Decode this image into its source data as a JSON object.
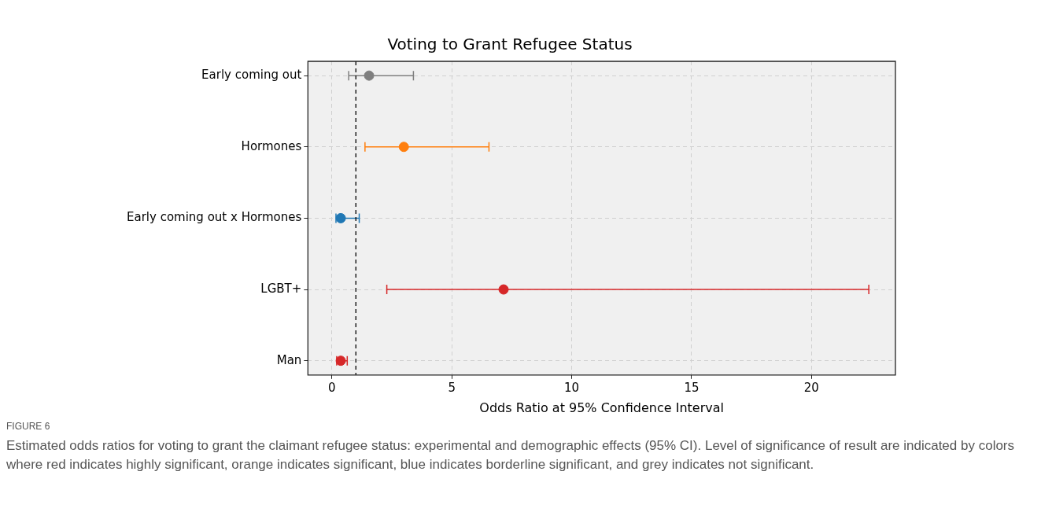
{
  "chart_data": {
    "type": "scatter",
    "orientation": "horizontal",
    "title": "Voting to Grant Refugee Status",
    "xlabel": "Odds Ratio at 95% Confidence Interval",
    "categories": [
      "Early coming out",
      "Hormones",
      "Early coming out x Hormones",
      "LGBT+",
      "Man"
    ],
    "values": [
      1.55,
      3.0,
      0.37,
      7.16,
      0.37
    ],
    "errors": [
      [
        0.7,
        3.4
      ],
      [
        1.38,
        6.55
      ],
      [
        0.17,
        1.14
      ],
      [
        2.29,
        22.39
      ],
      [
        0.2,
        0.64
      ]
    ],
    "colors": [
      "#7f7f7f",
      "#ff7f0e",
      "#1f77b4",
      "#d62728",
      "#d62728"
    ],
    "xlim": [
      -1,
      23.5
    ],
    "xticks": [
      0,
      5,
      10,
      15,
      20
    ],
    "grid": true,
    "legend": false,
    "marker": "circle",
    "ref_lines": [
      {
        "axis": "x",
        "value": 1,
        "color": "#000000",
        "line_style": "dashed"
      }
    ],
    "annotations": [
      "FIGURE 6",
      "Estimated odds ratios for voting to grant the claimant refugee status: experimental and demographic effects (95% CI). Level of significance of result are indicated by colors where red indicates highly significant, orange indicates significant, blue indicates borderline significant, and grey indicates not significant."
    ]
  }
}
